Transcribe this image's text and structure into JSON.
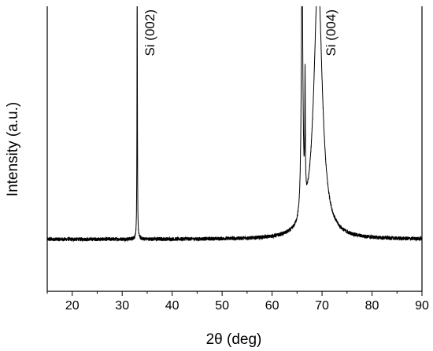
{
  "chart_data": {
    "type": "line",
    "title": "",
    "xlabel": "2θ (deg)",
    "ylabel": "Intensity (a.u.)",
    "xlim": [
      15,
      90
    ],
    "ylim": [
      0,
      100
    ],
    "x_ticks": [
      20,
      30,
      40,
      50,
      60,
      70,
      80,
      90
    ],
    "y_ticks": [],
    "grid": false,
    "legend": "none",
    "annotations": [
      {
        "text": "Si (002)",
        "x": 33.0
      },
      {
        "text": "Si (004)",
        "x": 69.2
      }
    ],
    "series": [
      {
        "color": "#000000",
        "baseline": 12,
        "noise": 0.6,
        "peaks": [
          {
            "center": 33.0,
            "height": 100,
            "width": 0.05
          },
          {
            "center": 66.0,
            "height": 100,
            "width": 0.18
          },
          {
            "center": 66.6,
            "height": 45,
            "width": 0.06
          },
          {
            "center": 69.2,
            "height": 100,
            "width": 1.0
          }
        ]
      }
    ]
  }
}
